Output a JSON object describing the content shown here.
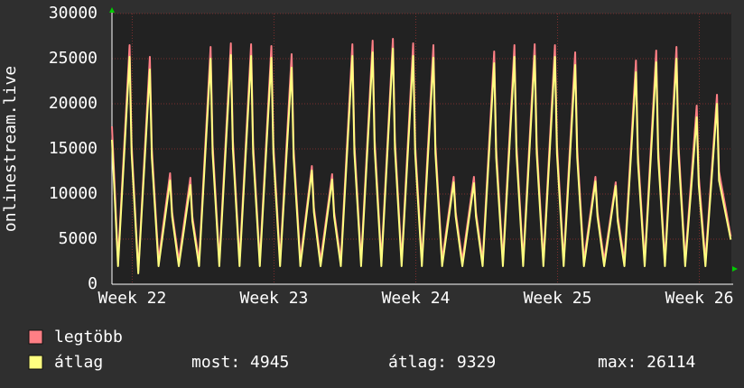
{
  "chart_data": {
    "type": "line",
    "y_label": "onlinestream.live",
    "xlim": [
      0,
      30.58
    ],
    "ylim": [
      0,
      30000
    ],
    "yticks": [
      0,
      5000,
      10000,
      15000,
      20000,
      25000,
      30000
    ],
    "xticks": [
      {
        "value": 1,
        "label": "Week 22"
      },
      {
        "value": 8,
        "label": "Week 23"
      },
      {
        "value": 15,
        "label": "Week 24"
      },
      {
        "value": 22,
        "label": "Week 25"
      },
      {
        "value": 29,
        "label": "Week 26"
      }
    ],
    "grid": true,
    "x": [
      0,
      0.3,
      0.87,
      0.97,
      1.3,
      1.87,
      1.97,
      2.3,
      2.87,
      2.97,
      3.3,
      3.87,
      3.97,
      4.3,
      4.87,
      4.97,
      5.3,
      5.87,
      5.97,
      6.3,
      6.87,
      6.97,
      7.3,
      7.87,
      7.97,
      8.3,
      8.87,
      8.97,
      9.3,
      9.87,
      9.97,
      10.3,
      10.87,
      10.97,
      11.3,
      11.87,
      11.97,
      12.3,
      12.87,
      12.97,
      13.3,
      13.87,
      13.97,
      14.3,
      14.87,
      14.97,
      15.3,
      15.87,
      15.97,
      16.3,
      16.87,
      16.97,
      17.3,
      17.87,
      17.97,
      18.3,
      18.87,
      18.97,
      19.3,
      19.87,
      19.97,
      20.3,
      20.87,
      20.97,
      21.3,
      21.87,
      21.97,
      22.3,
      22.87,
      22.97,
      23.3,
      23.87,
      23.97,
      24.3,
      24.87,
      24.97,
      25.3,
      25.87,
      25.97,
      26.3,
      26.87,
      26.97,
      27.3,
      27.87,
      27.97,
      28.3,
      28.87,
      28.97,
      29.3,
      29.87,
      29.97,
      30.55
    ],
    "series": [
      {
        "name": "legtöbb",
        "color": "#ff7f85",
        "values": [
          17500,
          2600,
          26500,
          15500,
          1500,
          25200,
          15000,
          2600,
          12300,
          8000,
          2600,
          11800,
          7500,
          2600,
          26300,
          15500,
          2600,
          26700,
          16000,
          2600,
          26600,
          15500,
          2600,
          26400,
          15500,
          2600,
          25500,
          15000,
          2600,
          13100,
          8500,
          2600,
          12200,
          8000,
          2600,
          26600,
          15500,
          2600,
          27000,
          16000,
          2600,
          27200,
          16000,
          2600,
          26700,
          15500,
          2600,
          26500,
          15500,
          2600,
          11900,
          8000,
          2600,
          11900,
          8000,
          2600,
          25800,
          15000,
          2600,
          26500,
          15500,
          2600,
          26600,
          15500,
          2600,
          26500,
          15500,
          2600,
          25700,
          15000,
          2600,
          11900,
          8000,
          2600,
          11300,
          7500,
          2600,
          24800,
          14500,
          2600,
          25900,
          15000,
          2600,
          26300,
          15500,
          2600,
          19800,
          12000,
          2600,
          21000,
          12500,
          5300
        ]
      },
      {
        "name": "átlag",
        "color": "#ffff80",
        "values": [
          16000,
          2000,
          25200,
          14500,
          1200,
          23800,
          14000,
          2000,
          11500,
          7500,
          2000,
          11000,
          7000,
          2000,
          25000,
          14500,
          2000,
          25400,
          15000,
          2000,
          25300,
          14500,
          2000,
          25100,
          14500,
          2000,
          24000,
          14000,
          2000,
          12600,
          8000,
          2000,
          11600,
          7500,
          2000,
          25300,
          14500,
          2000,
          25700,
          15000,
          2000,
          26114,
          15000,
          2000,
          25300,
          14500,
          2000,
          25100,
          14500,
          2000,
          11300,
          7500,
          2000,
          11200,
          7500,
          2000,
          24500,
          14000,
          2000,
          25200,
          14500,
          2000,
          25300,
          14500,
          2000,
          25200,
          14500,
          2000,
          24300,
          14000,
          2000,
          11400,
          7500,
          2000,
          10900,
          7000,
          2000,
          23500,
          13500,
          2000,
          24600,
          14000,
          2000,
          25000,
          14500,
          2000,
          18500,
          11000,
          2000,
          20000,
          11500,
          4945
        ]
      }
    ],
    "stats": [
      "most: 4945",
      "átlag: 9329",
      "max: 26114"
    ]
  }
}
